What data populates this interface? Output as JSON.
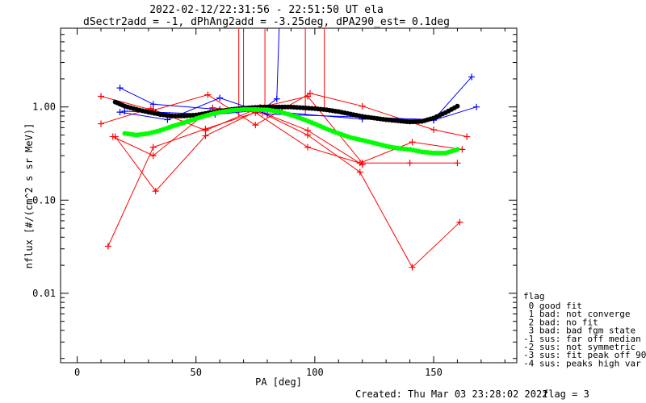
{
  "chart_data": {
    "type": "scatter",
    "title": "2022-02-12/22:31:56 - 22:51:50 UT ela",
    "subtitle": "dSectr2add = -1, dPhAng2add = -3.25deg, dPA290_est=   0.1deg",
    "xlabel": "PA [deg]",
    "ylabel": "nflux [#/(cm^2 s sr MeV)]",
    "x_ticks": [
      0,
      50,
      100,
      150
    ],
    "y_tick_values": [
      0.01,
      0.1,
      1.0
    ],
    "y_tick_labels": [
      "0.01",
      "0.10",
      "1.00"
    ],
    "xlim": [
      -7,
      185
    ],
    "ylim": [
      0.0018,
      7.0
    ],
    "log_y": true,
    "footer_left": "Created: Thu Mar 03 23:28:02 2022",
    "footer_right": "flag = 3",
    "legend_title": "flag",
    "legend_items": [
      " 0 good fit",
      " 1 bad: not converge",
      " 2 bad: no fit",
      " 3 bad: bad fgm state",
      "-1 sus: far off median",
      "-2 sus: not symmetric",
      "-3 sus: fit peak off 90",
      "-4 sus: peaks high var"
    ],
    "colors": {
      "red": "#ff0000",
      "blue": "#0000ff",
      "black": "#000000",
      "green": "#00ff00"
    },
    "red_series": [
      [
        [
          10,
          1.3
        ],
        [
          32,
          0.92
        ],
        [
          55,
          1.35
        ],
        [
          75,
          0.64
        ],
        [
          98,
          1.4
        ],
        [
          120,
          1.02
        ],
        [
          150,
          0.57
        ],
        [
          164,
          0.48
        ]
      ],
      [
        [
          10,
          0.66
        ],
        [
          31,
          0.96
        ],
        [
          54,
          0.56
        ],
        [
          77,
          0.99
        ],
        [
          97,
          1.3
        ],
        [
          120,
          0.25
        ],
        [
          140,
          0.25
        ],
        [
          160,
          0.25
        ]
      ],
      [
        [
          15,
          0.48
        ],
        [
          32,
          0.3
        ],
        [
          57,
          0.98
        ],
        [
          78,
          0.86
        ],
        [
          97,
          0.5
        ],
        [
          119,
          0.2
        ],
        [
          141,
          0.019
        ],
        [
          161,
          0.058
        ]
      ],
      [
        [
          13,
          0.032
        ],
        [
          32,
          0.37
        ],
        [
          54,
          0.58
        ],
        [
          75,
          0.87
        ],
        [
          97,
          0.37
        ],
        [
          119,
          0.25
        ],
        [
          141,
          0.42
        ],
        [
          162,
          0.35
        ]
      ],
      [
        [
          16,
          0.48
        ],
        [
          33,
          0.125
        ],
        [
          54,
          0.49
        ],
        [
          76,
          0.91
        ],
        [
          97,
          0.56
        ],
        [
          120,
          0.24
        ]
      ]
    ],
    "red_spikes": [
      [
        68,
        0.78
      ],
      [
        70,
        0.9
      ],
      [
        79,
        0.82
      ],
      [
        96,
        0.83
      ],
      [
        104,
        0.95
      ]
    ],
    "blue_series": [
      [
        [
          18,
          1.6
        ],
        [
          32,
          1.07
        ],
        [
          60,
          0.94
        ],
        [
          78,
          0.94
        ],
        [
          84,
          1.22
        ],
        [
          85,
          7.0
        ]
      ],
      [
        [
          18,
          0.88
        ],
        [
          38,
          0.73
        ],
        [
          60,
          1.25
        ],
        [
          80,
          0.84
        ],
        [
          120,
          0.78
        ],
        [
          150,
          0.73
        ],
        [
          166,
          2.1
        ]
      ],
      [
        [
          20,
          0.9
        ],
        [
          33,
          0.88
        ],
        [
          58,
          0.83
        ],
        [
          76,
          0.92
        ],
        [
          120,
          0.74
        ],
        [
          150,
          0.72
        ],
        [
          168,
          1.0
        ]
      ]
    ],
    "black_fit": {
      "x": [
        16,
        20,
        25,
        30,
        35,
        40,
        45,
        50,
        55,
        60,
        65,
        70,
        75,
        80,
        85,
        90,
        95,
        100,
        105,
        110,
        115,
        120,
        125,
        130,
        135,
        140,
        145,
        150,
        155,
        160
      ],
      "y": [
        1.13,
        1.02,
        0.94,
        0.88,
        0.83,
        0.8,
        0.8,
        0.82,
        0.86,
        0.9,
        0.94,
        0.97,
        0.99,
        1.0,
        1.0,
        1.0,
        0.98,
        0.96,
        0.93,
        0.89,
        0.84,
        0.79,
        0.76,
        0.73,
        0.71,
        0.69,
        0.7,
        0.76,
        0.87,
        1.02
      ]
    },
    "green_fit": {
      "x": [
        20,
        25,
        30,
        35,
        40,
        45,
        50,
        55,
        60,
        65,
        70,
        75,
        80,
        85,
        90,
        95,
        100,
        105,
        110,
        115,
        120,
        125,
        130,
        135,
        140,
        145,
        150,
        155,
        160
      ],
      "y": [
        0.52,
        0.5,
        0.52,
        0.56,
        0.62,
        0.68,
        0.75,
        0.82,
        0.88,
        0.92,
        0.94,
        0.94,
        0.93,
        0.89,
        0.82,
        0.74,
        0.66,
        0.58,
        0.52,
        0.47,
        0.44,
        0.41,
        0.38,
        0.36,
        0.35,
        0.33,
        0.32,
        0.32,
        0.35
      ]
    }
  }
}
